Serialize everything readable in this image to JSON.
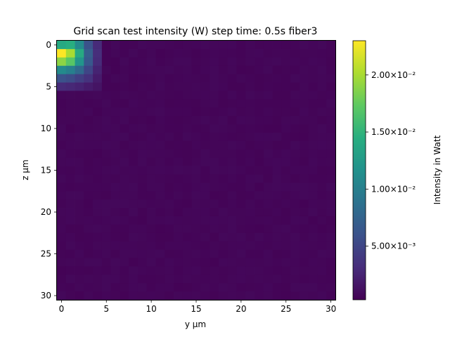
{
  "chart_data": {
    "type": "heatmap",
    "title": "Grid scan test intensity (W) step time: 0.5s fiber3",
    "xlabel": "y μm",
    "ylabel": "z μm",
    "x_range": [
      0,
      30
    ],
    "y_range": [
      0,
      30
    ],
    "xlim": [
      -0.5,
      30.5
    ],
    "ylim": [
      30.5,
      -0.5
    ],
    "x_ticks": [
      0,
      5,
      10,
      15,
      20,
      25,
      30
    ],
    "y_ticks": [
      0,
      5,
      10,
      15,
      20,
      25,
      30
    ],
    "x_tick_labels": [
      "0",
      "5",
      "10",
      "15",
      "20",
      "25",
      "30"
    ],
    "y_tick_labels": [
      "0",
      "5",
      "10",
      "15",
      "20",
      "25",
      "30"
    ],
    "colormap": "viridis",
    "colorbar": {
      "label": "Intensity in Watt",
      "vmin": 0.0003,
      "vmax": 0.023,
      "ticks": [
        0.005,
        0.01,
        0.015,
        0.02
      ],
      "tick_labels": [
        "5.00×10⁻³",
        "1.00×10⁻²",
        "1.50×10⁻²",
        "2.00×10⁻²"
      ]
    },
    "background_value": 0.0006,
    "hotspot_rows": [
      [
        0.014,
        0.0145,
        0.011,
        0.006,
        0.003
      ],
      [
        0.023,
        0.02,
        0.014,
        0.007,
        0.0032
      ],
      [
        0.019,
        0.017,
        0.012,
        0.0065,
        0.003
      ],
      [
        0.011,
        0.01,
        0.008,
        0.005,
        0.0025
      ],
      [
        0.006,
        0.0055,
        0.0045,
        0.0035,
        0.002
      ],
      [
        0.003,
        0.0028,
        0.0025,
        0.002,
        0.0015
      ]
    ]
  }
}
